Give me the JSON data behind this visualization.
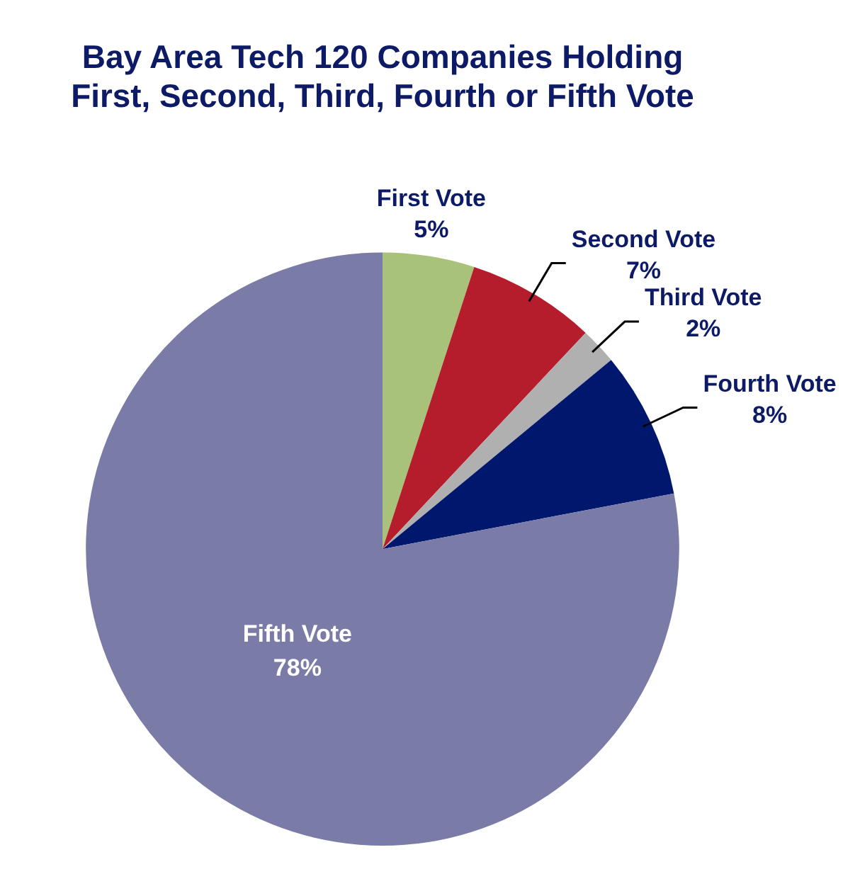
{
  "chart_data": {
    "type": "pie",
    "title": "Bay Area Tech 120 Companies Holding First, Second, Third, Fourth or Fifth Vote",
    "categories": [
      "First Vote",
      "Second Vote",
      "Third Vote",
      "Fourth Vote",
      "Fifth Vote"
    ],
    "values": [
      5,
      7,
      2,
      8,
      78
    ],
    "value_labels": [
      "5%",
      "7%",
      "2%",
      "8%",
      "78%"
    ],
    "colors": [
      "#a9c27a",
      "#b51c2c",
      "#b0b0b0",
      "#00176e",
      "#7a7ba6"
    ]
  }
}
